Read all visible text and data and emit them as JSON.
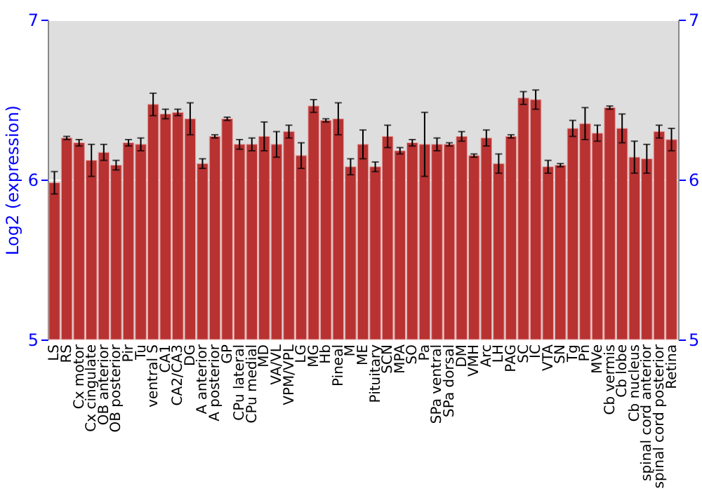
{
  "chart_data": {
    "type": "bar",
    "ylabel": "Log2 (expression)",
    "categories": [
      "LS",
      "RS",
      "Cx motor",
      "Cx cingulate",
      "OB anterior",
      "OB posterior",
      "Pir",
      "Tu",
      "ventral S",
      "CA1",
      "CA2/CA3",
      "DG",
      "A anterior",
      "A posterior",
      "GP",
      "CPu lateral",
      "CPu medial",
      "MD",
      "VA/VL",
      "VPM/VPL",
      "LG",
      "MG",
      "Hb",
      "Pineal",
      "M",
      "ME",
      "Pituitary",
      "SCN",
      "MPA",
      "SO",
      "Pa",
      "SPa ventral",
      "SPa dorsal",
      "DM",
      "VMH",
      "Arc",
      "LH",
      "PAG",
      "SC",
      "IC",
      "VTA",
      "SN",
      "Tg",
      "Pn",
      "MVe",
      "Cb vermis",
      "Cb lobe",
      "Cb nucleus",
      "spinal cord anterior",
      "spinal cord posterior",
      "Retina"
    ],
    "values": [
      5.98,
      6.26,
      6.23,
      6.12,
      6.17,
      6.09,
      6.23,
      6.22,
      6.47,
      6.41,
      6.42,
      6.38,
      6.1,
      6.27,
      6.38,
      6.22,
      6.22,
      6.27,
      6.22,
      6.3,
      6.15,
      6.46,
      6.37,
      6.38,
      6.08,
      6.22,
      6.08,
      6.27,
      6.18,
      6.23,
      6.22,
      6.22,
      6.22,
      6.27,
      6.15,
      6.26,
      6.1,
      6.27,
      6.51,
      6.5,
      6.08,
      6.09,
      6.32,
      6.35,
      6.29,
      6.45,
      6.32,
      6.14,
      6.13,
      6.3,
      6.25
    ],
    "errors": [
      0.07,
      0.01,
      0.02,
      0.1,
      0.05,
      0.03,
      0.02,
      0.04,
      0.07,
      0.03,
      0.02,
      0.1,
      0.03,
      0.01,
      0.01,
      0.03,
      0.04,
      0.09,
      0.08,
      0.04,
      0.08,
      0.04,
      0.01,
      0.1,
      0.05,
      0.09,
      0.03,
      0.07,
      0.02,
      0.02,
      0.2,
      0.04,
      0.01,
      0.03,
      0.01,
      0.05,
      0.06,
      0.01,
      0.04,
      0.06,
      0.04,
      0.01,
      0.05,
      0.1,
      0.05,
      0.01,
      0.09,
      0.1,
      0.09,
      0.04,
      0.07
    ],
    "color": "#b83232",
    "ylim": [
      5,
      7
    ],
    "yticks": [
      5,
      6,
      7
    ],
    "y2lim": [
      5,
      7
    ],
    "y2ticks": [
      5,
      6,
      7
    ],
    "grid": "y"
  }
}
